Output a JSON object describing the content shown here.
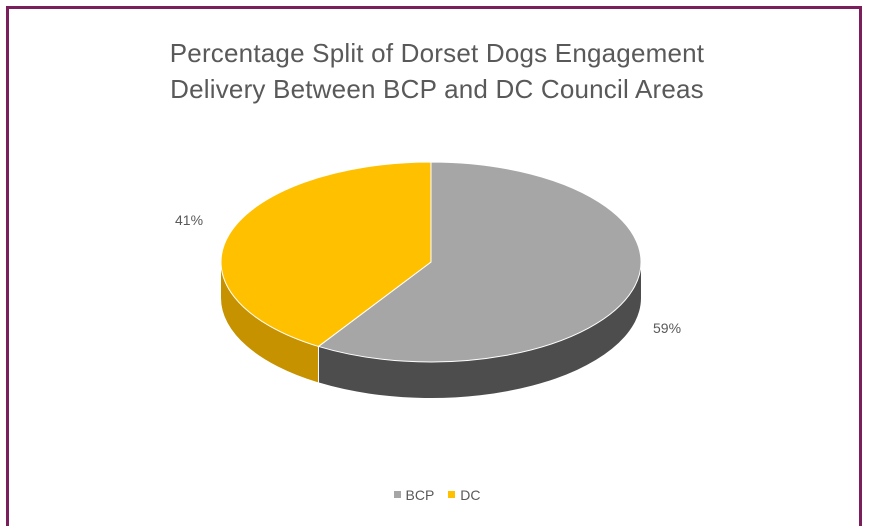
{
  "chart_data": {
    "type": "pie",
    "title_lines": [
      "Percentage Split of Dorset Dogs Engagement",
      "Delivery Between BCP and DC Council Areas"
    ],
    "slices": [
      {
        "label": "BCP",
        "value": 59,
        "display": "59%",
        "color": "#a6a6a6",
        "side_color": "#4d4d4d"
      },
      {
        "label": "DC",
        "value": 41,
        "display": "41%",
        "color": "#ffc000",
        "side_color": "#c79200"
      }
    ],
    "legend_position": "bottom",
    "three_d": true
  }
}
